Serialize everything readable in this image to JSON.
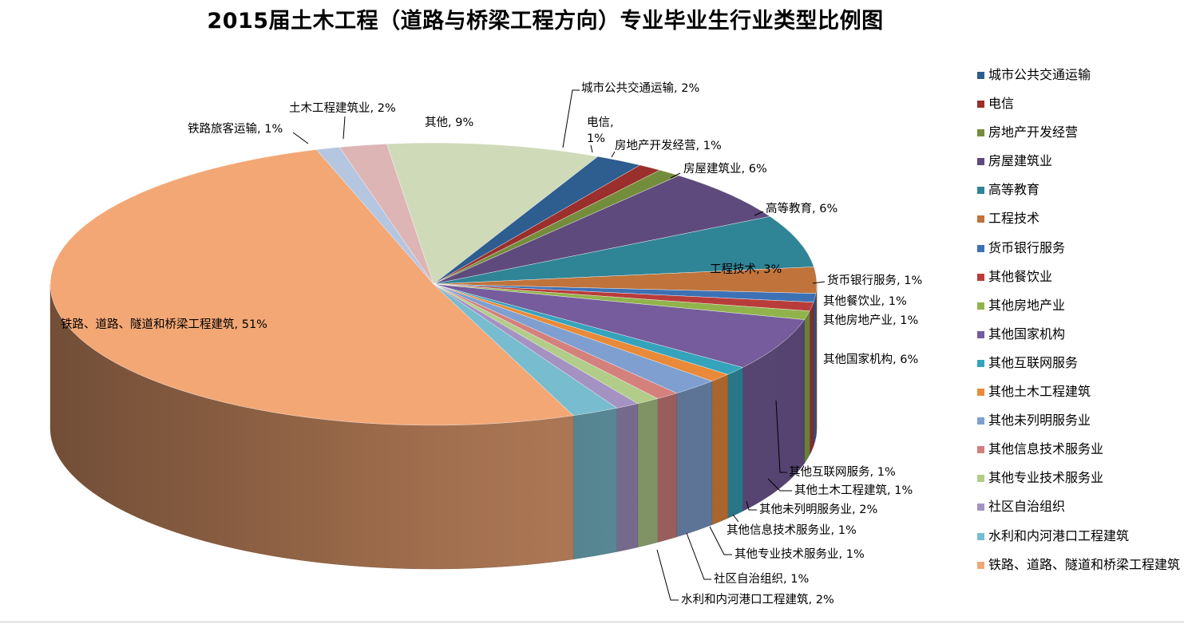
{
  "chart_data": {
    "type": "pie",
    "title": "2015届土木工程（道路与桥梁工程方向）专业毕业生行业类型比例图",
    "legend_position": "right",
    "three_d": true,
    "slices": [
      {
        "name": "其他",
        "value": 9,
        "label": "其他, 9%",
        "color": "#cfdab9",
        "in_legend": false
      },
      {
        "name": "城市公共交通运输",
        "value": 2,
        "label": "城市公共交通运输, 2%",
        "color": "#2e5d8f",
        "in_legend": true
      },
      {
        "name": "电信",
        "value": 1,
        "label": "电信,\n1%",
        "color": "#9b2f2c",
        "in_legend": true
      },
      {
        "name": "房地产开发经营",
        "value": 1,
        "label": "房地产开发经营, 1%",
        "color": "#748d3c",
        "in_legend": true
      },
      {
        "name": "房屋建筑业",
        "value": 6,
        "label": "房屋建筑业, 6%",
        "color": "#5e4a7c",
        "in_legend": true
      },
      {
        "name": "高等教育",
        "value": 6,
        "label": "高等教育, 6%",
        "color": "#2f8496",
        "in_legend": true
      },
      {
        "name": "工程技术",
        "value": 3,
        "label": "工程技术, 3%",
        "color": "#c0733a",
        "in_legend": true
      },
      {
        "name": "货币银行服务",
        "value": 1,
        "label": "货币银行服务, 1%",
        "color": "#3d71b5",
        "in_legend": true
      },
      {
        "name": "其他餐饮业",
        "value": 1,
        "label": "其他餐饮业, 1%",
        "color": "#b83d3a",
        "in_legend": true
      },
      {
        "name": "其他房地产业",
        "value": 1,
        "label": "其他房地产业, 1%",
        "color": "#91b34c",
        "in_legend": true
      },
      {
        "name": "其他国家机构",
        "value": 6,
        "label": "其他国家机构, 6%",
        "color": "#765c9c",
        "in_legend": true
      },
      {
        "name": "其他互联网服务",
        "value": 1,
        "label": "其他互联网服务, 1%",
        "color": "#35a3bc",
        "in_legend": true
      },
      {
        "name": "其他土木工程建筑",
        "value": 1,
        "label": "其他土木工程建筑, 1%",
        "color": "#e88a39",
        "in_legend": true
      },
      {
        "name": "其他未列明服务业",
        "value": 2,
        "label": "其他未列明服务业, 2%",
        "color": "#7e9fd0",
        "in_legend": true
      },
      {
        "name": "其他信息技术服务业",
        "value": 1,
        "label": "其他信息技术服务业, 1%",
        "color": "#d4807d",
        "in_legend": true
      },
      {
        "name": "其他专业技术服务业",
        "value": 1,
        "label": "其他专业技术服务业, 1%",
        "color": "#b2cc8a",
        "in_legend": true
      },
      {
        "name": "社区自治组织",
        "value": 1,
        "label": "社区自治组织, 1%",
        "color": "#a492c2",
        "in_legend": true
      },
      {
        "name": "水利和内河港口工程建筑",
        "value": 2,
        "label": "水利和内河港口工程建筑, 2%",
        "color": "#78bccf",
        "in_legend": true
      },
      {
        "name": "铁路、道路、隧道和桥梁工程建筑",
        "value": 51,
        "label": "铁路、道路、隧道和桥梁工程建筑, 51%",
        "color": "#f3a775",
        "in_legend": true
      },
      {
        "name": "铁路旅客运输",
        "value": 1,
        "label": "铁路旅客运输, 1%",
        "color": "#b5c6e0",
        "in_legend": false
      },
      {
        "name": "土木工程建筑业",
        "value": 2,
        "label": "土木工程建筑业, 2%",
        "color": "#deb5b5",
        "in_legend": false
      }
    ]
  }
}
